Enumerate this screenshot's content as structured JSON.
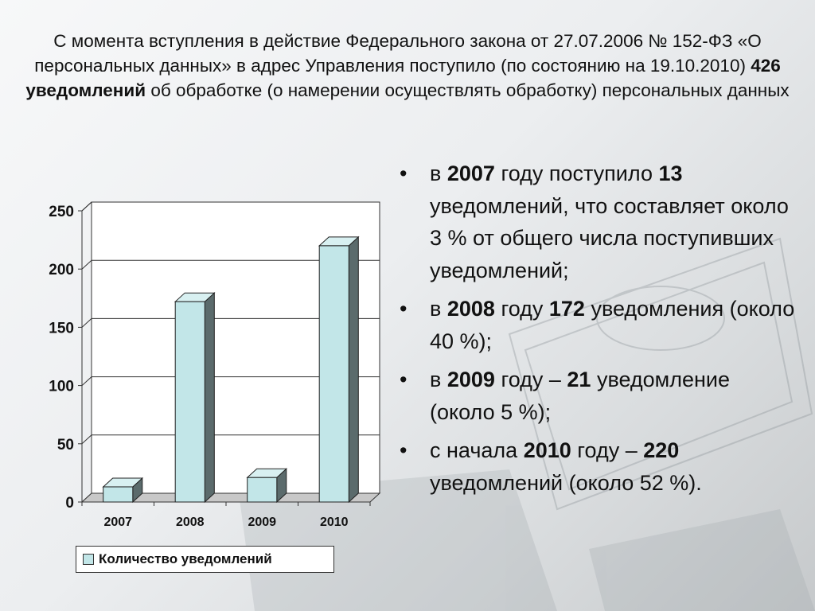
{
  "title": {
    "part1": "С момента вступления в действие Федерального закона от 27.07.2006 № 152-ФЗ «О персональных данных» в адрес Управления поступило (по состоянию на 19.10.2010) ",
    "bold": "426 уведомлений",
    "part2": " об обработке (о намерении осуществлять обработку) персональных данных"
  },
  "bullets": [
    {
      "t1": "в ",
      "b1": "2007",
      "t2": " году поступило ",
      "b2": "13",
      "t3": " уведомлений, что составляет около 3 % от общего числа поступивших уведомлений;"
    },
    {
      "t1": "в ",
      "b1": "2008",
      "t2": " году ",
      "b2": "172",
      "t3": " уведомления (около 40 %);"
    },
    {
      "t1": "в ",
      "b1": "2009",
      "t2": " году – ",
      "b2": "21",
      "t3": " уведомление (около 5 %);"
    },
    {
      "t1": "с начала ",
      "b1": "2010",
      "t2": " году – ",
      "b2": "220",
      "t3": " уведомлений (около 52 %)."
    }
  ],
  "chart_data": {
    "type": "bar",
    "categories": [
      "2007",
      "2008",
      "2009",
      "2010"
    ],
    "series": [
      {
        "name": "Количество уведомлений",
        "values": [
          13,
          172,
          21,
          220
        ]
      }
    ],
    "yticks": [
      "0",
      "50",
      "100",
      "150",
      "200",
      "250"
    ],
    "ylim": [
      0,
      250
    ],
    "grid": true,
    "legend": "bottom",
    "colors": {
      "front": "#c2e6e8",
      "top": "#d8f0f1",
      "side": "#5b6b6c",
      "outline": "#222222"
    }
  }
}
